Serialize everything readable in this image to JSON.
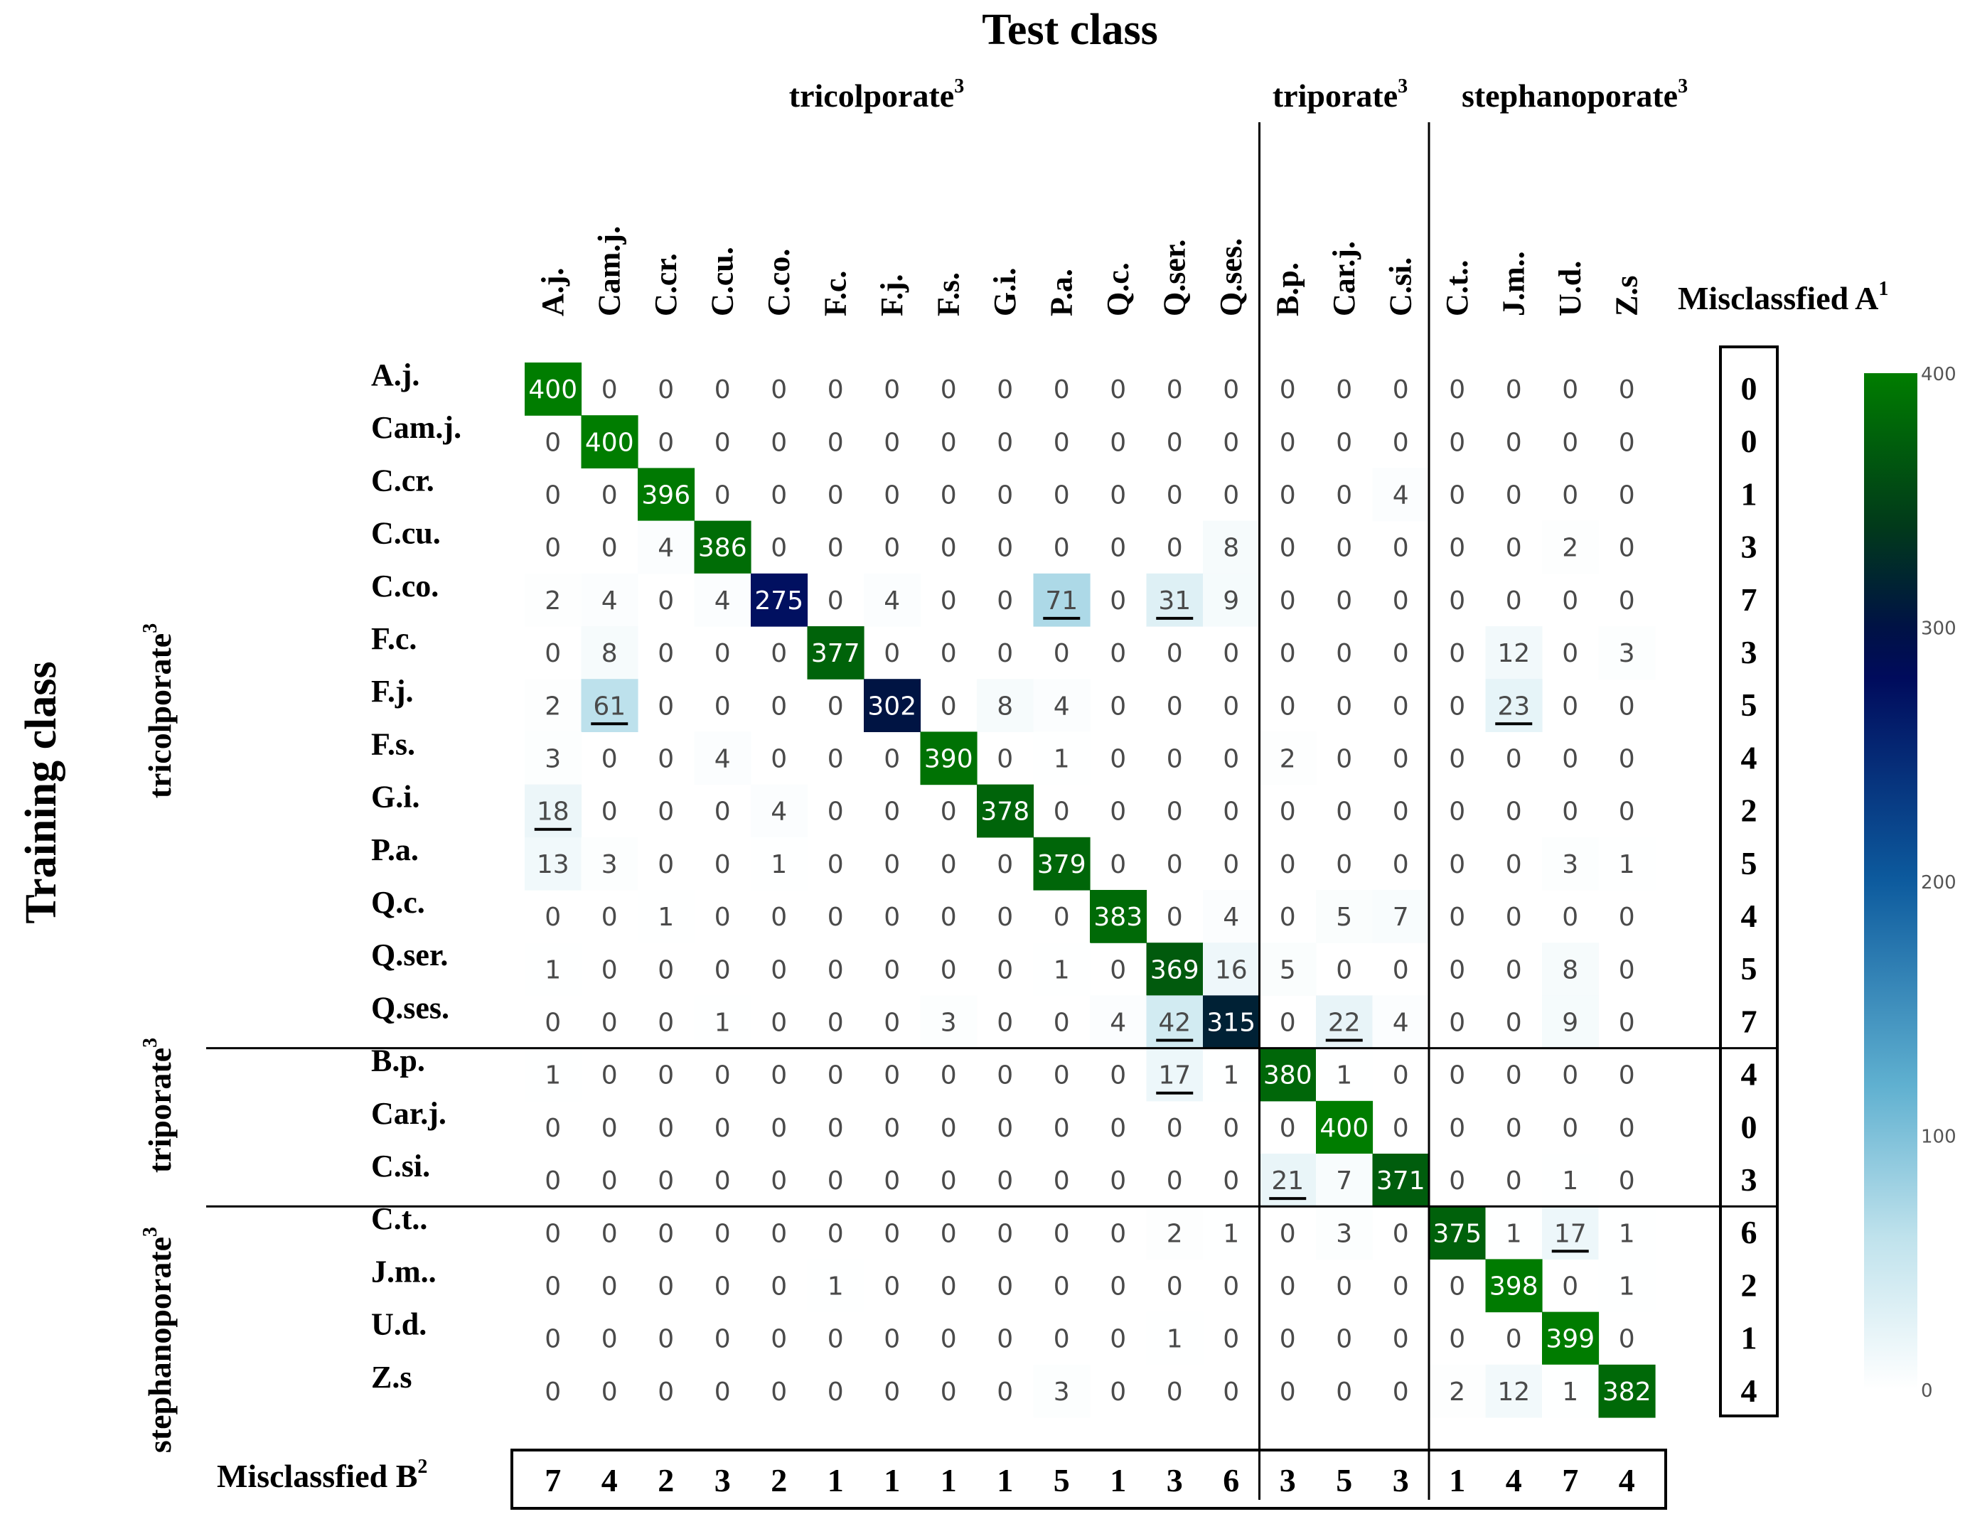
{
  "chart_data": {
    "type": "heatmap",
    "title": "Test class",
    "ylabel": "Training class",
    "col_groups": [
      {
        "label": "tricolporate",
        "sup": "3"
      },
      {
        "label": "triporate",
        "sup": "3"
      },
      {
        "label": "stephanoporate",
        "sup": "3"
      }
    ],
    "row_groups": [
      {
        "label": "tricolporate",
        "sup": "3"
      },
      {
        "label": "triporate",
        "sup": "3"
      },
      {
        "label": "stephanoporate",
        "sup": "3"
      }
    ],
    "group_sizes": [
      13,
      3,
      4
    ],
    "col_labels": [
      "A.j.",
      "Cam.j.",
      "C.cr.",
      "C.cu.",
      "C.co.",
      "F.c.",
      "F.j.",
      "F.s.",
      "G.i.",
      "P.a.",
      "Q.c.",
      "Q.ser.",
      "Q.ses.",
      "B.p.",
      "Car.j.",
      "C.si.",
      "C.t..",
      "J.m..",
      "U.d.",
      "Z.s"
    ],
    "row_labels": [
      "A.j.",
      "Cam.j.",
      "C.cr.",
      "C.cu.",
      "C.co.",
      "F.c.",
      "F.j.",
      "F.s.",
      "G.i.",
      "P.a.",
      "Q.c.",
      "Q.ser.",
      "Q.ses.",
      "B.p.",
      "Car.j.",
      "C.si.",
      "C.t..",
      "J.m..",
      "U.d.",
      "Z.s"
    ],
    "matrix": [
      [
        400,
        0,
        0,
        0,
        0,
        0,
        0,
        0,
        0,
        0,
        0,
        0,
        0,
        0,
        0,
        0,
        0,
        0,
        0,
        0
      ],
      [
        0,
        400,
        0,
        0,
        0,
        0,
        0,
        0,
        0,
        0,
        0,
        0,
        0,
        0,
        0,
        0,
        0,
        0,
        0,
        0
      ],
      [
        0,
        0,
        396,
        0,
        0,
        0,
        0,
        0,
        0,
        0,
        0,
        0,
        0,
        0,
        0,
        4,
        0,
        0,
        0,
        0
      ],
      [
        0,
        0,
        4,
        386,
        0,
        0,
        0,
        0,
        0,
        0,
        0,
        0,
        8,
        0,
        0,
        0,
        0,
        0,
        2,
        0
      ],
      [
        2,
        4,
        0,
        4,
        275,
        0,
        4,
        0,
        0,
        71,
        0,
        31,
        9,
        0,
        0,
        0,
        0,
        0,
        0,
        0
      ],
      [
        0,
        8,
        0,
        0,
        0,
        377,
        0,
        0,
        0,
        0,
        0,
        0,
        0,
        0,
        0,
        0,
        0,
        12,
        0,
        3
      ],
      [
        2,
        61,
        0,
        0,
        0,
        0,
        302,
        0,
        8,
        4,
        0,
        0,
        0,
        0,
        0,
        0,
        0,
        23,
        0,
        0
      ],
      [
        3,
        0,
        0,
        4,
        0,
        0,
        0,
        390,
        0,
        1,
        0,
        0,
        0,
        2,
        0,
        0,
        0,
        0,
        0,
        0
      ],
      [
        18,
        0,
        0,
        0,
        4,
        0,
        0,
        0,
        378,
        0,
        0,
        0,
        0,
        0,
        0,
        0,
        0,
        0,
        0,
        0
      ],
      [
        13,
        3,
        0,
        0,
        1,
        0,
        0,
        0,
        0,
        379,
        0,
        0,
        0,
        0,
        0,
        0,
        0,
        0,
        3,
        1
      ],
      [
        0,
        0,
        1,
        0,
        0,
        0,
        0,
        0,
        0,
        0,
        383,
        0,
        4,
        0,
        5,
        7,
        0,
        0,
        0,
        0
      ],
      [
        1,
        0,
        0,
        0,
        0,
        0,
        0,
        0,
        0,
        1,
        0,
        369,
        16,
        5,
        0,
        0,
        0,
        0,
        8,
        0
      ],
      [
        0,
        0,
        0,
        1,
        0,
        0,
        0,
        3,
        0,
        0,
        4,
        42,
        315,
        0,
        22,
        4,
        0,
        0,
        9,
        0
      ],
      [
        1,
        0,
        0,
        0,
        0,
        0,
        0,
        0,
        0,
        0,
        0,
        17,
        1,
        380,
        1,
        0,
        0,
        0,
        0,
        0
      ],
      [
        0,
        0,
        0,
        0,
        0,
        0,
        0,
        0,
        0,
        0,
        0,
        0,
        0,
        0,
        400,
        0,
        0,
        0,
        0,
        0
      ],
      [
        0,
        0,
        0,
        0,
        0,
        0,
        0,
        0,
        0,
        0,
        0,
        0,
        0,
        21,
        7,
        371,
        0,
        0,
        1,
        0
      ],
      [
        0,
        0,
        0,
        0,
        0,
        0,
        0,
        0,
        0,
        0,
        0,
        2,
        1,
        0,
        3,
        0,
        375,
        1,
        17,
        1
      ],
      [
        0,
        0,
        0,
        0,
        0,
        1,
        0,
        0,
        0,
        0,
        0,
        0,
        0,
        0,
        0,
        0,
        0,
        398,
        0,
        1
      ],
      [
        0,
        0,
        0,
        0,
        0,
        0,
        0,
        0,
        0,
        0,
        0,
        1,
        0,
        0,
        0,
        0,
        0,
        0,
        399,
        0
      ],
      [
        0,
        0,
        0,
        0,
        0,
        0,
        0,
        0,
        0,
        3,
        0,
        0,
        0,
        0,
        0,
        0,
        2,
        12,
        1,
        382
      ]
    ],
    "underlined_cells": [
      [
        4,
        9
      ],
      [
        4,
        11
      ],
      [
        6,
        1
      ],
      [
        6,
        17
      ],
      [
        8,
        0
      ],
      [
        12,
        11
      ],
      [
        12,
        14
      ],
      [
        13,
        11
      ],
      [
        15,
        13
      ],
      [
        16,
        18
      ]
    ],
    "misclassified_a": {
      "label": "Misclassfied A",
      "sup": "1",
      "values": [
        0,
        0,
        1,
        3,
        7,
        3,
        5,
        4,
        2,
        5,
        4,
        5,
        7,
        4,
        0,
        3,
        6,
        2,
        1,
        4
      ]
    },
    "misclassified_b": {
      "label": "Misclassfied B",
      "sup": "2",
      "values": [
        7,
        4,
        2,
        3,
        2,
        1,
        1,
        1,
        1,
        5,
        1,
        3,
        6,
        3,
        5,
        3,
        1,
        4,
        7,
        4
      ]
    },
    "colorbar": {
      "ticks": [
        0,
        100,
        200,
        300,
        400
      ],
      "range": [
        0,
        400
      ]
    },
    "colors": {
      "scale": [
        {
          "v": 0,
          "c": "#ffffff"
        },
        {
          "v": 60,
          "c": "#bfe2ec"
        },
        {
          "v": 120,
          "c": "#5fb0d0"
        },
        {
          "v": 200,
          "c": "#0d5b9e"
        },
        {
          "v": 280,
          "c": "#000b5c"
        },
        {
          "v": 300,
          "c": "#001245"
        },
        {
          "v": 340,
          "c": "#013a1a"
        },
        {
          "v": 400,
          "c": "#007d00"
        }
      ],
      "cell_text_light": "#ffffff",
      "cell_text_dark": "#4a4a4a",
      "lines": "#000000"
    }
  }
}
